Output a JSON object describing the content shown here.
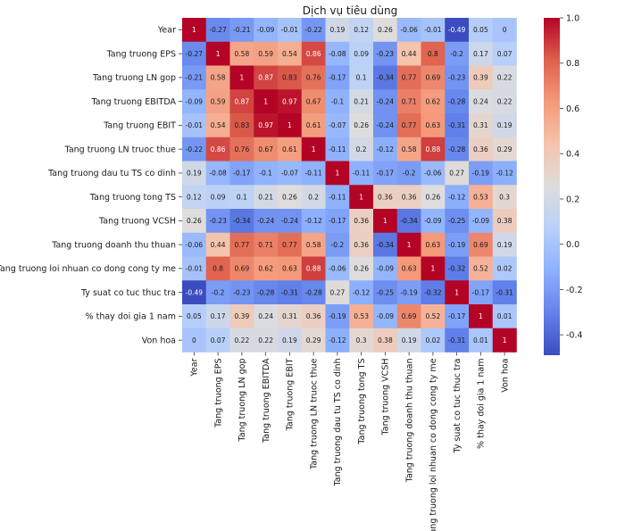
{
  "chart_data": {
    "type": "heatmap",
    "title": "Dịch vụ tiêu dùng",
    "labels": [
      "Year",
      "Tang truong EPS",
      "Tang truong  LN gop",
      "Tang truong  EBITDA",
      "Tang truong  EBIT",
      "Tang truong  LN truoc thue",
      "Tang truong  dau tu TS co dinh",
      "Tang truong tong TS",
      "Tang truong  VCSH",
      "Tang truong doanh thu thuan",
      "Tang truong  loi nhuan co dong cong ty me",
      "Ty suat co tuc thuc tra",
      "% thay doi gia 1 nam",
      "Von hoa"
    ],
    "values": [
      [
        1,
        -0.27,
        -0.21,
        -0.09,
        -0.01,
        -0.22,
        0.19,
        0.12,
        0.26,
        -0.06,
        -0.01,
        -0.49,
        0.05,
        0
      ],
      [
        -0.27,
        1,
        0.58,
        0.59,
        0.54,
        0.86,
        -0.08,
        0.09,
        -0.23,
        0.44,
        0.8,
        -0.2,
        0.17,
        0.07
      ],
      [
        -0.21,
        0.58,
        1,
        0.87,
        0.83,
        0.76,
        -0.17,
        0.1,
        -0.34,
        0.77,
        0.69,
        -0.23,
        0.39,
        0.22
      ],
      [
        -0.09,
        0.59,
        0.87,
        1,
        0.97,
        0.67,
        -0.1,
        0.21,
        -0.24,
        0.71,
        0.62,
        -0.28,
        0.24,
        0.22
      ],
      [
        -0.01,
        0.54,
        0.83,
        0.97,
        1,
        0.61,
        -0.07,
        0.26,
        -0.24,
        0.77,
        0.63,
        -0.31,
        0.31,
        0.19
      ],
      [
        -0.22,
        0.86,
        0.76,
        0.67,
        0.61,
        1,
        -0.11,
        0.2,
        -0.12,
        0.58,
        0.88,
        -0.28,
        0.36,
        0.29
      ],
      [
        0.19,
        -0.08,
        -0.17,
        -0.1,
        -0.07,
        -0.11,
        1,
        -0.11,
        -0.17,
        -0.2,
        -0.06,
        0.27,
        -0.19,
        -0.12
      ],
      [
        0.12,
        0.09,
        0.1,
        0.21,
        0.26,
        0.2,
        -0.11,
        1,
        0.36,
        0.36,
        0.26,
        -0.12,
        0.53,
        0.3
      ],
      [
        0.26,
        -0.23,
        -0.34,
        -0.24,
        -0.24,
        -0.12,
        -0.17,
        0.36,
        1,
        -0.34,
        -0.09,
        -0.25,
        -0.09,
        0.38
      ],
      [
        -0.06,
        0.44,
        0.77,
        0.71,
        0.77,
        0.58,
        -0.2,
        0.36,
        -0.34,
        1,
        0.63,
        -0.19,
        0.69,
        0.19
      ],
      [
        -0.01,
        0.8,
        0.69,
        0.62,
        0.63,
        0.88,
        -0.06,
        0.26,
        -0.09,
        0.63,
        1,
        -0.32,
        0.52,
        0.02
      ],
      [
        -0.49,
        -0.2,
        -0.23,
        -0.28,
        -0.31,
        -0.28,
        0.27,
        -0.12,
        -0.25,
        -0.19,
        -0.32,
        1,
        -0.17,
        -0.31
      ],
      [
        0.05,
        0.17,
        0.39,
        0.24,
        0.31,
        0.36,
        -0.19,
        0.53,
        -0.09,
        0.69,
        0.52,
        -0.17,
        1,
        0.01
      ],
      [
        0,
        0.07,
        0.22,
        0.22,
        0.19,
        0.29,
        -0.12,
        0.3,
        0.38,
        0.19,
        0.02,
        -0.31,
        0.01,
        1
      ]
    ],
    "colormap": "coolwarm",
    "vmin": -0.49,
    "vmax": 1,
    "colorbar_ticks": [
      "1.0",
      "0.8",
      "0.6",
      "0.4",
      "0.2",
      "0.0",
      "-0.2",
      "-0.4"
    ],
    "colorbar_tick_values": [
      1.0,
      0.8,
      0.6,
      0.4,
      0.2,
      0.0,
      -0.2,
      -0.4
    ],
    "annotations": true
  }
}
